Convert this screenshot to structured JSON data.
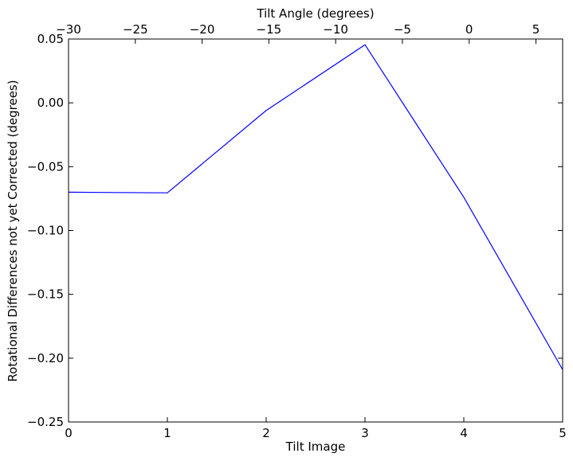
{
  "chart_data": {
    "type": "line",
    "title": "",
    "xlabel": "Tilt Image",
    "ylabel": "Rotational Differences not yet Corrected (degrees)",
    "x2label": "Tilt Angle (degrees)",
    "xlim": [
      0,
      5
    ],
    "ylim": [
      -0.25,
      0.05
    ],
    "x2lim": [
      -30,
      7
    ],
    "x_ticks": [
      0,
      1,
      2,
      3,
      4,
      5
    ],
    "x_tick_labels": [
      "0",
      "1",
      "2",
      "3",
      "4",
      "5"
    ],
    "y_ticks": [
      -0.25,
      -0.2,
      -0.15,
      -0.1,
      -0.05,
      0.0,
      0.05
    ],
    "y_tick_labels": [
      "−0.25",
      "−0.20",
      "−0.15",
      "−0.10",
      "−0.05",
      "0.00",
      "0.05"
    ],
    "x2_ticks": [
      -30,
      -25,
      -20,
      -15,
      -10,
      -5,
      0,
      5
    ],
    "x2_tick_labels": [
      "−30",
      "−25",
      "−20",
      "−15",
      "−10",
      "−5",
      "0",
      "5"
    ],
    "grid": false,
    "series": [
      {
        "color": "#0000ff",
        "x": [
          0,
          1,
          2,
          3,
          4,
          5
        ],
        "y": [
          -0.07,
          -0.0705,
          -0.006,
          0.0455,
          -0.074,
          -0.209
        ]
      }
    ]
  }
}
